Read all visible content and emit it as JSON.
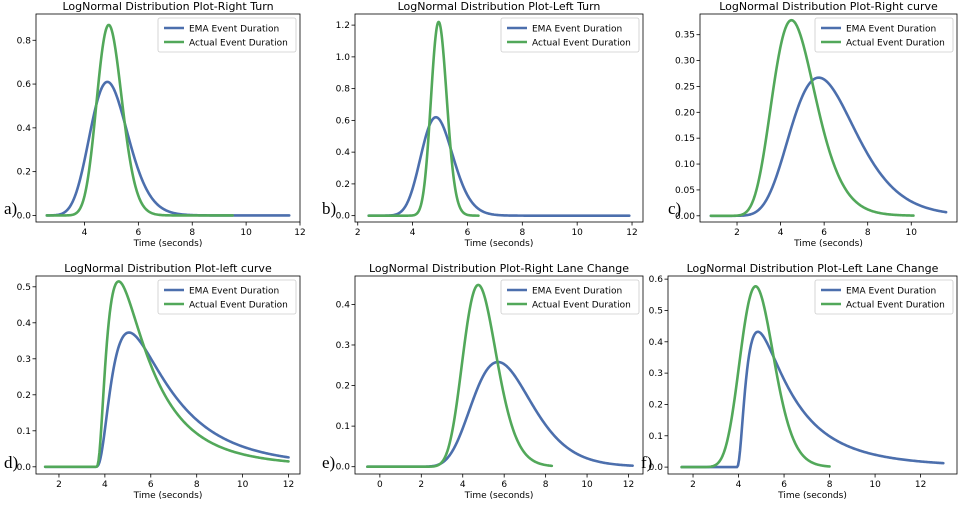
{
  "colors": {
    "ema": "#4c6fad",
    "actual": "#52a85a",
    "axis": "#000000",
    "background": "#ffffff"
  },
  "chart_data": [
    {
      "panel_label": "a)",
      "type": "line",
      "title": "LogNormal Distribution Plot-Right Turn",
      "xlabel": "Time (seconds)",
      "ylabel": "",
      "xlim": [
        2.2,
        12.0
      ],
      "ylim": [
        -0.03,
        0.92
      ],
      "xticks": [
        4,
        6,
        8,
        10,
        12
      ],
      "yticks": [
        0.0,
        0.2,
        0.4,
        0.6,
        0.8
      ],
      "legend_position": "upper right",
      "grid": false,
      "series": [
        {
          "name": "EMA Event Duration",
          "color": "#4c6fad",
          "x_range": [
            2.6,
            11.6
          ],
          "peak_x": 4.85,
          "peak_y": 0.61,
          "sigma": 0.145
        },
        {
          "name": "Actual Event Duration",
          "color": "#52a85a",
          "x_range": [
            2.6,
            9.5
          ],
          "peak_x": 4.9,
          "peak_y": 0.87,
          "sigma": 0.095
        }
      ]
    },
    {
      "panel_label": "b)",
      "type": "line",
      "title": "LogNormal Distribution Plot-Left Turn",
      "xlabel": "Time (seconds)",
      "ylabel": "",
      "xlim": [
        1.9,
        12.4
      ],
      "ylim": [
        -0.04,
        1.27
      ],
      "xticks": [
        2,
        4,
        6,
        8,
        10,
        12
      ],
      "yticks": [
        0.0,
        0.2,
        0.4,
        0.6,
        0.8,
        1.0,
        1.2
      ],
      "legend_position": "upper right",
      "grid": false,
      "series": [
        {
          "name": "EMA Event Duration",
          "color": "#4c6fad",
          "x_range": [
            2.4,
            11.9
          ],
          "peak_x": 4.85,
          "peak_y": 0.62,
          "sigma": 0.12
        },
        {
          "name": "Actual Event Duration",
          "color": "#52a85a",
          "x_range": [
            2.4,
            6.4
          ],
          "peak_x": 4.95,
          "peak_y": 1.22,
          "sigma": 0.058
        }
      ]
    },
    {
      "panel_label": "c)",
      "type": "line",
      "title": "LogNormal Distribution Plot-Right curve",
      "xlabel": "Time (seconds)",
      "ylabel": "",
      "xlim": [
        0.3,
        12.1
      ],
      "ylim": [
        -0.012,
        0.39
      ],
      "xticks": [
        2,
        4,
        6,
        8,
        10
      ],
      "yticks": [
        0.0,
        0.05,
        0.1,
        0.15,
        0.2,
        0.25,
        0.3,
        0.35
      ],
      "legend_position": "upper right",
      "grid": false,
      "series": [
        {
          "name": "EMA Event Duration",
          "color": "#4c6fad",
          "x_range": [
            0.8,
            11.6
          ],
          "peak_x": 5.75,
          "peak_y": 0.267,
          "sigma": 0.26
        },
        {
          "name": "Actual Event Duration",
          "color": "#52a85a",
          "x_range": [
            0.8,
            10.1
          ],
          "peak_x": 4.5,
          "peak_y": 0.378,
          "sigma": 0.22
        }
      ]
    },
    {
      "panel_label": "d)",
      "type": "line",
      "title": "LogNormal Distribution Plot-left curve",
      "xlabel": "Time (seconds)",
      "ylabel": "",
      "xlim": [
        1.0,
        12.5
      ],
      "ylim": [
        -0.02,
        0.53
      ],
      "xticks": [
        2,
        4,
        6,
        8,
        10,
        12
      ],
      "yticks": [
        0.0,
        0.1,
        0.2,
        0.3,
        0.4,
        0.5
      ],
      "legend_position": "upper right",
      "grid": false,
      "series": [
        {
          "name": "EMA Event Duration",
          "color": "#4c6fad",
          "x_range": [
            1.4,
            12.0
          ],
          "peak_x": 5.05,
          "peak_y": 0.373,
          "x0": 3.55,
          "sigma": 0.75
        },
        {
          "name": "Actual Event Duration",
          "color": "#52a85a",
          "x_range": [
            1.4,
            12.0
          ],
          "peak_x": 4.6,
          "peak_y": 0.515,
          "x0": 3.6,
          "sigma": 0.8
        }
      ]
    },
    {
      "panel_label": "e)",
      "type": "line",
      "title": "LogNormal Distribution Plot-Right Lane Change",
      "xlabel": "Time (seconds)",
      "ylabel": "",
      "xlim": [
        -1.2,
        12.7
      ],
      "ylim": [
        -0.018,
        0.47
      ],
      "xticks": [
        0,
        2,
        4,
        6,
        8,
        10,
        12
      ],
      "yticks": [
        0.0,
        0.1,
        0.2,
        0.3,
        0.4
      ],
      "legend_position": "upper right",
      "grid": false,
      "series": [
        {
          "name": "EMA Event Duration",
          "color": "#4c6fad",
          "x_range": [
            -0.6,
            12.2
          ],
          "peak_x": 5.7,
          "peak_y": 0.258,
          "sigma": 0.25
        },
        {
          "name": "Actual Event Duration",
          "color": "#52a85a",
          "x_range": [
            -0.6,
            8.3
          ],
          "peak_x": 4.75,
          "peak_y": 0.448,
          "sigma": 0.17
        }
      ]
    },
    {
      "panel_label": "f)",
      "type": "line",
      "title": "LogNormal Distribution Plot-Left Lane Change",
      "xlabel": "Time (seconds)",
      "ylabel": "",
      "xlim": [
        0.9,
        13.6
      ],
      "ylim": [
        -0.022,
        0.61
      ],
      "xticks": [
        2,
        4,
        6,
        8,
        10,
        12
      ],
      "yticks": [
        0.0,
        0.1,
        0.2,
        0.3,
        0.4,
        0.5,
        0.6
      ],
      "legend_position": "upper right",
      "grid": false,
      "series": [
        {
          "name": "EMA Event Duration",
          "color": "#4c6fad",
          "x_range": [
            1.5,
            13.0
          ],
          "peak_x": 4.85,
          "peak_y": 0.432,
          "x0": 3.9,
          "sigma": 0.85
        },
        {
          "name": "Actual Event Duration",
          "color": "#52a85a",
          "x_range": [
            1.5,
            8.0
          ],
          "peak_x": 4.75,
          "peak_y": 0.577,
          "sigma": 0.155
        }
      ]
    }
  ]
}
